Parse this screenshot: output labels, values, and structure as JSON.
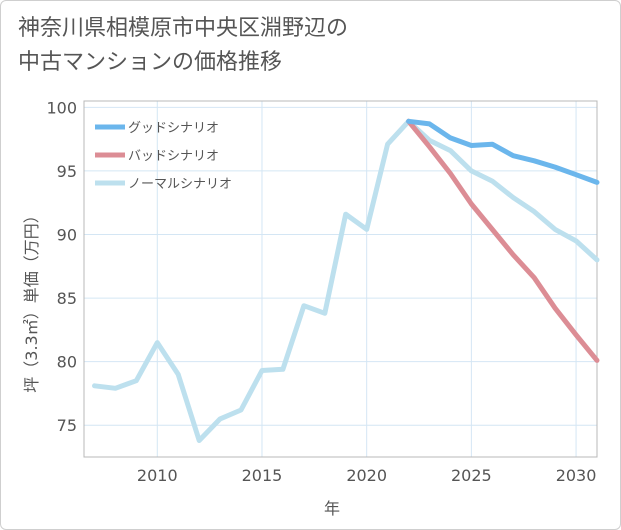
{
  "title_lines": [
    "神奈川県相模原市中央区淵野辺の",
    "中古マンションの価格推移"
  ],
  "chart_data": {
    "type": "line",
    "xlabel": "年",
    "ylabel": "坪（3.3㎡）単価（万円）",
    "xlim": [
      2006.5,
      2031
    ],
    "ylim": [
      72.5,
      100.5
    ],
    "xticks": [
      2010,
      2015,
      2020,
      2025,
      2030
    ],
    "yticks": [
      75,
      80,
      85,
      90,
      95,
      100
    ],
    "grid": true,
    "legend_position": "top-left",
    "series": [
      {
        "name": "グッドシナリオ",
        "color": "#6bb6ec",
        "x": [
          2022,
          2023,
          2024,
          2025,
          2026,
          2027,
          2028,
          2029,
          2030,
          2031
        ],
        "values": [
          98.9,
          98.7,
          97.6,
          97.0,
          97.1,
          96.2,
          95.8,
          95.3,
          94.7,
          94.1
        ]
      },
      {
        "name": "バッドシナリオ",
        "color": "#dc8d95",
        "x": [
          2022,
          2023,
          2024,
          2025,
          2026,
          2027,
          2028,
          2029,
          2030,
          2031
        ],
        "values": [
          98.9,
          96.9,
          94.8,
          92.4,
          90.4,
          88.4,
          86.6,
          84.2,
          82.1,
          80.1
        ]
      },
      {
        "name": "ノーマルシナリオ",
        "color": "#bde0ee",
        "x": [
          2007,
          2008,
          2009,
          2010,
          2011,
          2012,
          2013,
          2014,
          2015,
          2016,
          2017,
          2018,
          2019,
          2020,
          2021,
          2022,
          2023,
          2024,
          2025,
          2026,
          2027,
          2028,
          2029,
          2030,
          2031
        ],
        "values": [
          78.1,
          77.9,
          78.5,
          81.5,
          79.0,
          73.8,
          75.5,
          76.2,
          79.3,
          79.4,
          84.4,
          83.8,
          91.6,
          90.4,
          97.1,
          98.9,
          97.4,
          96.6,
          95.0,
          94.2,
          92.9,
          91.8,
          90.4,
          89.5,
          88.0
        ]
      }
    ]
  }
}
